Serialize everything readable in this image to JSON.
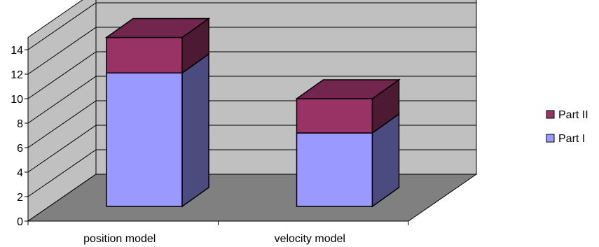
{
  "chart_data": {
    "type": "bar",
    "stacked": true,
    "three_d": true,
    "categories": [
      "position model",
      "velocity model"
    ],
    "series": [
      {
        "name": "Part I",
        "values": [
          10.9,
          6.0
        ],
        "color": "#9999ff",
        "side_color": "#4b4b80"
      },
      {
        "name": "Part II",
        "values": [
          2.9,
          2.8
        ],
        "color": "#993366",
        "side_color": "#4c1a33",
        "top_color": "#73264d"
      }
    ],
    "y_ticks": [
      "0",
      "2",
      "4",
      "6",
      "8",
      "10",
      "12",
      "14"
    ],
    "ylim": [
      0,
      15
    ],
    "grid": true,
    "legend_position": "right",
    "wall_color": "#c0c0c0",
    "floor_color": "#808080"
  }
}
